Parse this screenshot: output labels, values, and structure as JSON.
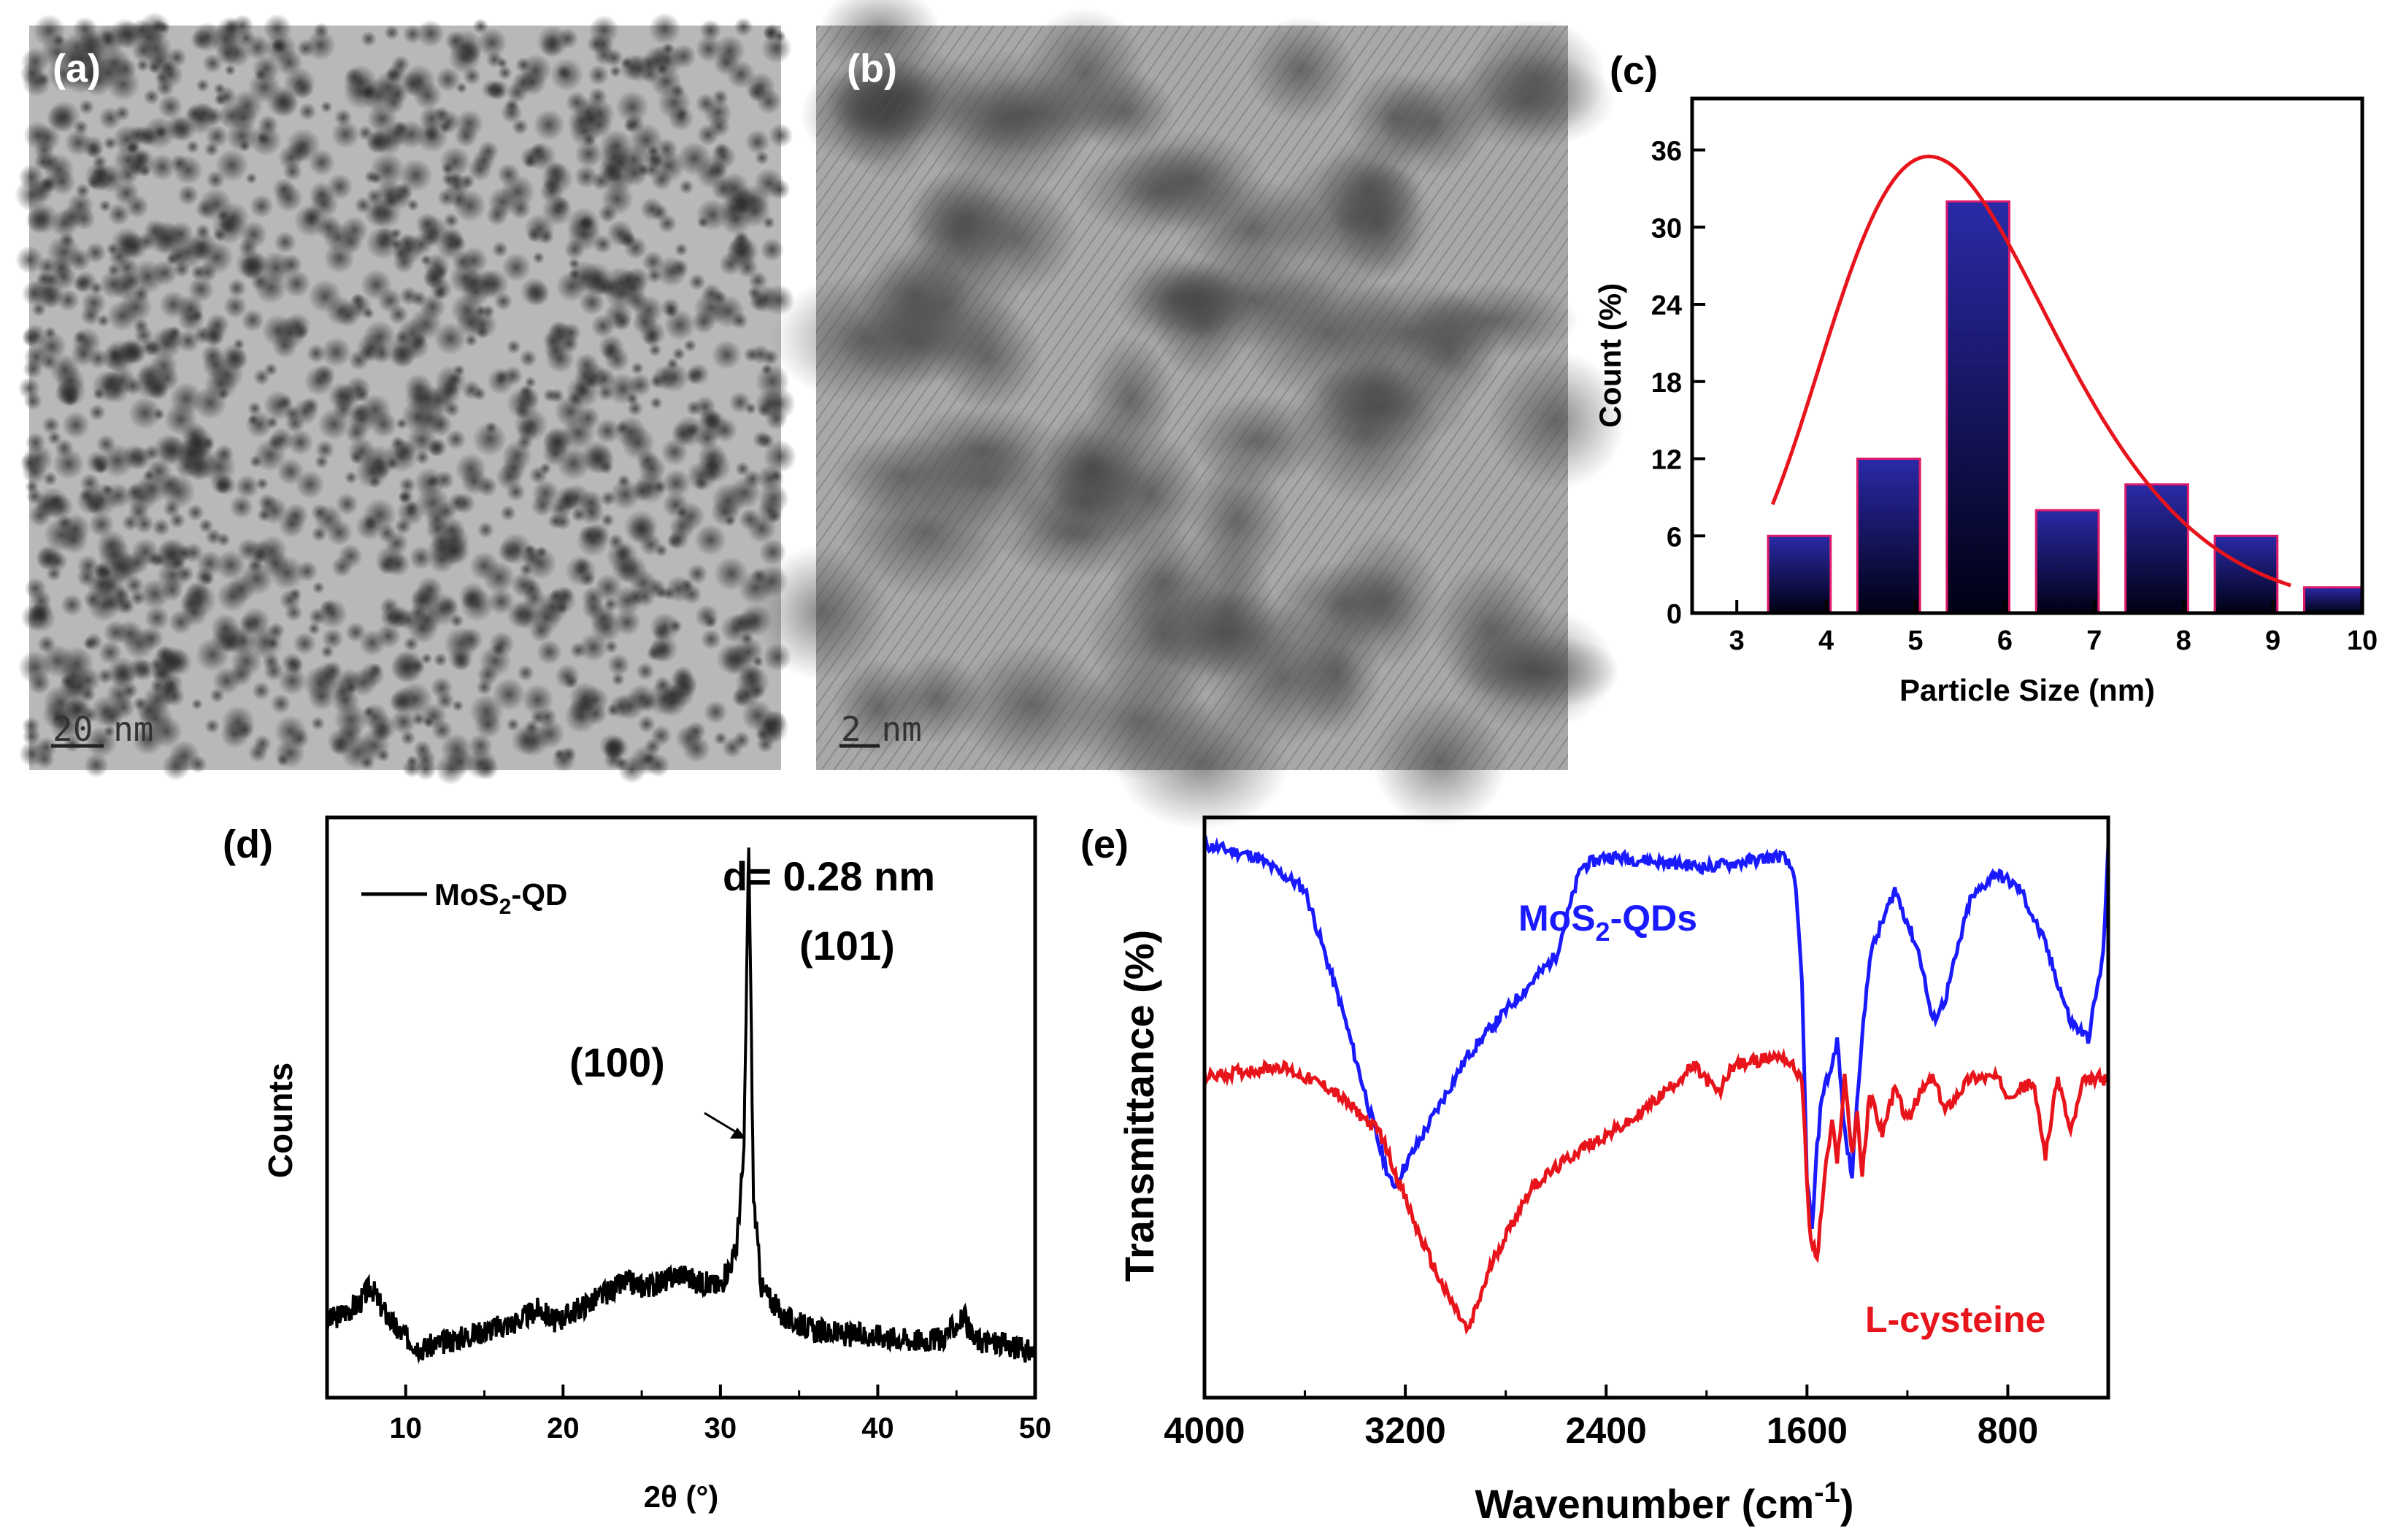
{
  "panels": {
    "a": {
      "label": "(a)",
      "scale_bar": "20 nm"
    },
    "b": {
      "label": "(b)",
      "scale_bar": "2 nm"
    }
  },
  "chart_data": [
    {
      "id": "c",
      "panel_label": "(c)",
      "type": "bar",
      "title": "",
      "xlabel": "Particle Size (nm)",
      "ylabel": "Count (%)",
      "xlim": [
        2.5,
        10
      ],
      "ylim": [
        0,
        40
      ],
      "xticks": [
        3,
        4,
        5,
        6,
        7,
        8,
        9,
        10
      ],
      "yticks": [
        0,
        6,
        12,
        18,
        24,
        30,
        36
      ],
      "bins": [
        [
          3.35,
          4.05
        ],
        [
          4.35,
          5.05
        ],
        [
          5.35,
          6.05
        ],
        [
          6.35,
          7.05
        ],
        [
          7.35,
          8.05
        ],
        [
          8.35,
          9.05
        ],
        [
          9.35,
          10.0
        ]
      ],
      "values": [
        6,
        12,
        32,
        8,
        10,
        6,
        2
      ],
      "fit": {
        "type": "log-normal",
        "peak_x": 5.15,
        "peak_y": 35.5,
        "x_range": [
          3.4,
          9.2
        ],
        "color": "#e8141b"
      },
      "colors": {
        "bar_top": "#2a2aa8",
        "bar_bottom": "#000014",
        "bar_edge": "#e01a6a"
      }
    },
    {
      "id": "d",
      "panel_label": "(d)",
      "type": "line",
      "xlabel": "2θ (°)",
      "ylabel": "Counts",
      "xlim": [
        5,
        50
      ],
      "xticks": [
        10,
        20,
        30,
        40,
        50
      ],
      "series": [
        {
          "name": "MoS2-QD",
          "color": "#000000",
          "points": [
            [
              5,
              820
            ],
            [
              6,
              840
            ],
            [
              7,
              860
            ],
            [
              7.8,
              900
            ],
            [
              8.5,
              850
            ],
            [
              9.5,
              800
            ],
            [
              11,
              760
            ],
            [
              13,
              780
            ],
            [
              15,
              800
            ],
            [
              17,
              820
            ],
            [
              18.5,
              850
            ],
            [
              19.5,
              820
            ],
            [
              21,
              850
            ],
            [
              23,
              890
            ],
            [
              24,
              910
            ],
            [
              25,
              900
            ],
            [
              26,
              905
            ],
            [
              27.5,
              930
            ],
            [
              28.5,
              910
            ],
            [
              30,
              900
            ],
            [
              31,
              980
            ],
            [
              31.5,
              1200
            ],
            [
              31.8,
              1900
            ],
            [
              32.1,
              1100
            ],
            [
              32.6,
              900
            ],
            [
              34,
              830
            ],
            [
              36,
              800
            ],
            [
              38,
              790
            ],
            [
              40,
              790
            ],
            [
              42,
              780
            ],
            [
              44,
              780
            ],
            [
              45.5,
              830
            ],
            [
              46,
              780
            ],
            [
              48,
              770
            ],
            [
              50,
              750
            ]
          ]
        }
      ],
      "legend": {
        "line_label_main": "MoS",
        "line_label_sub": "2",
        "line_label_tail": "-QD"
      },
      "annotations": {
        "d_spacing": "d= 0.28 nm",
        "peak_101": "(101)",
        "peak_100": "(100)"
      }
    },
    {
      "id": "e",
      "panel_label": "(e)",
      "type": "line",
      "xlabel_main": "Wavenumber (cm",
      "xlabel_sup": "-1",
      "xlabel_tail": ")",
      "ylabel": "Transmittance (%)",
      "xlim": [
        4000,
        400
      ],
      "xticks": [
        4000,
        3200,
        2400,
        1600,
        800
      ],
      "series": [
        {
          "name_main": "MoS",
          "name_sub": "2",
          "name_tail": "-QDs",
          "color": "#1a1aff",
          "points": [
            [
              4000,
              100
            ],
            [
              3800,
              98
            ],
            [
              3600,
              92
            ],
            [
              3450,
              70
            ],
            [
              3300,
              45
            ],
            [
              3250,
              38
            ],
            [
              3100,
              50
            ],
            [
              2950,
              62
            ],
            [
              2800,
              70
            ],
            [
              2600,
              80
            ],
            [
              2500,
              96
            ],
            [
              2400,
              98
            ],
            [
              2200,
              97
            ],
            [
              2000,
              96
            ],
            [
              1850,
              97
            ],
            [
              1700,
              98
            ],
            [
              1650,
              95
            ],
            [
              1620,
              75
            ],
            [
              1600,
              40
            ],
            [
              1580,
              30
            ],
            [
              1560,
              45
            ],
            [
              1540,
              55
            ],
            [
              1500,
              60
            ],
            [
              1480,
              65
            ],
            [
              1450,
              48
            ],
            [
              1420,
              40
            ],
            [
              1400,
              55
            ],
            [
              1350,
              80
            ],
            [
              1250,
              92
            ],
            [
              1150,
              80
            ],
            [
              1100,
              68
            ],
            [
              1050,
              72
            ],
            [
              950,
              90
            ],
            [
              850,
              95
            ],
            [
              750,
              92
            ],
            [
              650,
              82
            ],
            [
              550,
              68
            ],
            [
              480,
              65
            ],
            [
              420,
              80
            ],
            [
              400,
              100
            ]
          ]
        },
        {
          "name": "L-cysteine",
          "color": "#e8141b",
          "points": [
            [
              4000,
              58
            ],
            [
              3700,
              60
            ],
            [
              3500,
              56
            ],
            [
              3300,
              48
            ],
            [
              3150,
              30
            ],
            [
              3050,
              20
            ],
            [
              2950,
              12
            ],
            [
              2850,
              25
            ],
            [
              2700,
              38
            ],
            [
              2500,
              45
            ],
            [
              2300,
              50
            ],
            [
              2150,
              56
            ],
            [
              2050,
              60
            ],
            [
              1950,
              55
            ],
            [
              1900,
              60
            ],
            [
              1700,
              62
            ],
            [
              1620,
              58
            ],
            [
              1590,
              30
            ],
            [
              1560,
              25
            ],
            [
              1530,
              40
            ],
            [
              1500,
              50
            ],
            [
              1480,
              42
            ],
            [
              1450,
              58
            ],
            [
              1420,
              44
            ],
            [
              1400,
              52
            ],
            [
              1380,
              40
            ],
            [
              1350,
              55
            ],
            [
              1300,
              48
            ],
            [
              1250,
              56
            ],
            [
              1200,
              50
            ],
            [
              1150,
              55
            ],
            [
              1100,
              58
            ],
            [
              1050,
              52
            ],
            [
              950,
              58
            ],
            [
              850,
              58
            ],
            [
              800,
              55
            ],
            [
              700,
              57
            ],
            [
              650,
              44
            ],
            [
              600,
              58
            ],
            [
              550,
              48
            ],
            [
              500,
              57
            ],
            [
              430,
              58
            ],
            [
              400,
              57
            ]
          ]
        }
      ]
    }
  ]
}
